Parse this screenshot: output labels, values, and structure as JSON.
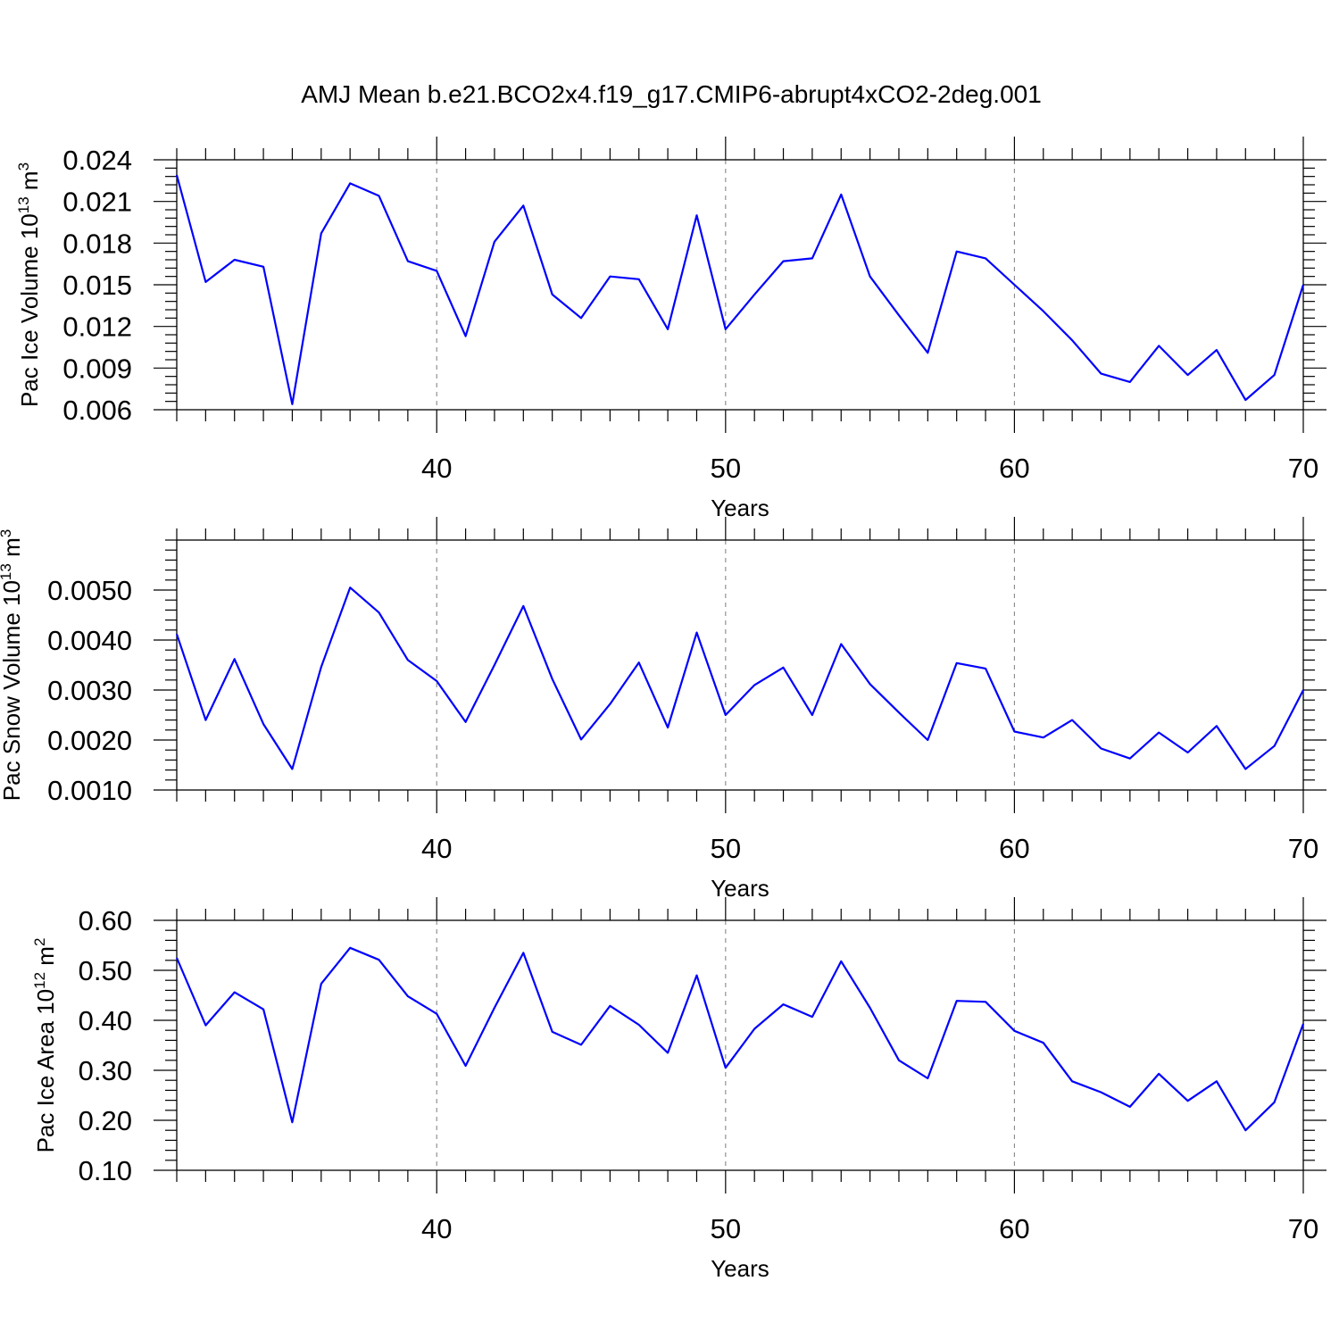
{
  "figure_title": "AMJ Mean b.e21.BCO2x4.f19_g17.CMIP6-abrupt4xCO2-2deg.001",
  "line_color": "#0000ff",
  "chart_data": [
    {
      "type": "line",
      "title": "",
      "xlabel": "Years",
      "ylabel": "Pac Ice Volume 10",
      "ylabel_exponent": "13",
      "ylabel_unit": "m",
      "ylabel_unit_exponent": "3",
      "xlim": [
        31,
        70
      ],
      "ylim": [
        0.006,
        0.024
      ],
      "x_ticks": [
        40,
        50,
        60,
        70
      ],
      "y_ticks": [
        0.006,
        0.009,
        0.012,
        0.015,
        0.018,
        0.021,
        0.024
      ],
      "y_tick_labels": [
        "0.006",
        "0.009",
        "0.012",
        "0.015",
        "0.018",
        "0.021",
        "0.024"
      ],
      "grid": "dashed vertical at major x ticks",
      "x": [
        31,
        32,
        33,
        34,
        35,
        36,
        37,
        38,
        39,
        40,
        41,
        42,
        43,
        44,
        45,
        46,
        47,
        48,
        49,
        50,
        51,
        52,
        53,
        54,
        55,
        56,
        57,
        58,
        59,
        60,
        61,
        62,
        63,
        64,
        65,
        66,
        67,
        68,
        69,
        70
      ],
      "values": [
        0.0229,
        0.0152,
        0.0168,
        0.0163,
        0.0064,
        0.0187,
        0.0223,
        0.0214,
        0.0167,
        0.016,
        0.0113,
        0.0181,
        0.0207,
        0.0143,
        0.0126,
        0.0156,
        0.0154,
        0.0118,
        0.02,
        0.0118,
        0.0143,
        0.0167,
        0.0169,
        0.0215,
        0.0156,
        0.0128,
        0.0101,
        0.0174,
        0.0169,
        0.015,
        0.0131,
        0.011,
        0.0086,
        0.008,
        0.0106,
        0.0085,
        0.0103,
        0.0067,
        0.0085,
        0.015
      ]
    },
    {
      "type": "line",
      "title": "",
      "xlabel": "Years",
      "ylabel": "Pac Snow Volume 10",
      "ylabel_exponent": "13",
      "ylabel_unit": "m",
      "ylabel_unit_exponent": "3",
      "xlim": [
        31,
        70
      ],
      "ylim": [
        0.001,
        0.006
      ],
      "x_ticks": [
        40,
        50,
        60,
        70
      ],
      "y_ticks": [
        0.001,
        0.002,
        0.003,
        0.004,
        0.005
      ],
      "y_tick_labels": [
        "0.0010",
        "0.0020",
        "0.0030",
        "0.0040",
        "0.0050"
      ],
      "grid": "dashed vertical at major x ticks",
      "x": [
        31,
        32,
        33,
        34,
        35,
        36,
        37,
        38,
        39,
        40,
        41,
        42,
        43,
        44,
        45,
        46,
        47,
        48,
        49,
        50,
        51,
        52,
        53,
        54,
        55,
        56,
        57,
        58,
        59,
        60,
        61,
        62,
        63,
        64,
        65,
        66,
        67,
        68,
        69,
        70
      ],
      "values": [
        0.00412,
        0.0024,
        0.00362,
        0.00232,
        0.00142,
        0.00346,
        0.00505,
        0.00455,
        0.0036,
        0.00318,
        0.00236,
        0.0035,
        0.00468,
        0.00322,
        0.00201,
        0.00272,
        0.00355,
        0.00225,
        0.00415,
        0.0025,
        0.0031,
        0.00345,
        0.0025,
        0.00392,
        0.00312,
        0.00255,
        0.002,
        0.00354,
        0.00343,
        0.00217,
        0.00205,
        0.0024,
        0.00183,
        0.00163,
        0.00215,
        0.00175,
        0.00228,
        0.00142,
        0.00188,
        0.003
      ]
    },
    {
      "type": "line",
      "title": "",
      "xlabel": "Years",
      "ylabel": "Pac Ice Area 10",
      "ylabel_exponent": "12",
      "ylabel_unit": "m",
      "ylabel_unit_exponent": "2",
      "xlim": [
        31,
        70
      ],
      "ylim": [
        0.1,
        0.6
      ],
      "x_ticks": [
        40,
        50,
        60,
        70
      ],
      "y_ticks": [
        0.1,
        0.2,
        0.3,
        0.4,
        0.5,
        0.6
      ],
      "y_tick_labels": [
        "0.10",
        "0.20",
        "0.30",
        "0.40",
        "0.50",
        "0.60"
      ],
      "grid": "dashed vertical at major x ticks",
      "x": [
        31,
        32,
        33,
        34,
        35,
        36,
        37,
        38,
        39,
        40,
        41,
        42,
        43,
        44,
        45,
        46,
        47,
        48,
        49,
        50,
        51,
        52,
        53,
        54,
        55,
        56,
        57,
        58,
        59,
        60,
        61,
        62,
        63,
        64,
        65,
        66,
        67,
        68,
        69,
        70
      ],
      "values": [
        0.525,
        0.39,
        0.456,
        0.422,
        0.196,
        0.473,
        0.545,
        0.521,
        0.448,
        0.413,
        0.309,
        0.425,
        0.535,
        0.377,
        0.351,
        0.429,
        0.391,
        0.335,
        0.49,
        0.305,
        0.383,
        0.432,
        0.407,
        0.518,
        0.425,
        0.32,
        0.284,
        0.439,
        0.437,
        0.379,
        0.355,
        0.278,
        0.256,
        0.227,
        0.293,
        0.239,
        0.278,
        0.18,
        0.236,
        0.393
      ]
    }
  ]
}
